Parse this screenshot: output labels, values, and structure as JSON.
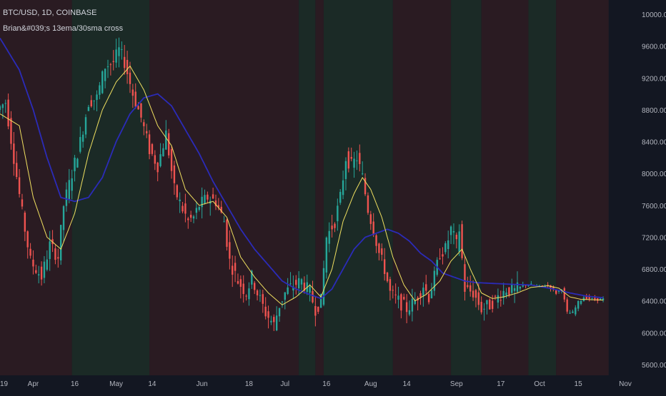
{
  "header": {
    "symbol_line": "BTC/USD, 1D, COINBASE",
    "indicator_line": "Brian&#039;s 13ema/30sma cross"
  },
  "colors": {
    "background": "#131722",
    "bull_candle": "#26a69a",
    "bear_candle": "#ef5350",
    "bull_zone": "#1b2a26",
    "bear_zone": "#2a1b22",
    "ema13": "#f0e060",
    "sma30": "#2b2bb8",
    "axis_text": "#b2b5be"
  },
  "chart_data": {
    "type": "candlestick",
    "series": [
      {
        "name": "BTC/USD"
      },
      {
        "name": "13ema"
      },
      {
        "name": "30sma"
      }
    ],
    "ylim": [
      5600,
      10000
    ],
    "y_ticks": [
      "10000.00",
      "9600.00",
      "9200.00",
      "8800.00",
      "8400.00",
      "8000.00",
      "7600.00",
      "7200.00",
      "6800.00",
      "6400.00",
      "6000.00",
      "5600.00"
    ],
    "x_ticks": [
      {
        "label": "19",
        "day": -12
      },
      {
        "label": "Apr",
        "day": 0
      },
      {
        "label": "16",
        "day": 15
      },
      {
        "label": "May",
        "day": 30
      },
      {
        "label": "14",
        "day": 43
      },
      {
        "label": "Jun",
        "day": 61
      },
      {
        "label": "18",
        "day": 78
      },
      {
        "label": "Jul",
        "day": 91
      },
      {
        "label": "16",
        "day": 106
      },
      {
        "label": "Aug",
        "day": 122
      },
      {
        "label": "14",
        "day": 135
      },
      {
        "label": "Sep",
        "day": 153
      },
      {
        "label": "17",
        "day": 169
      },
      {
        "label": "Oct",
        "day": 183
      },
      {
        "label": "15",
        "day": 197
      },
      {
        "label": "Nov",
        "day": 214
      }
    ],
    "trend_zones": [
      {
        "start": -12,
        "end": 14,
        "trend": "bear"
      },
      {
        "start": 14,
        "end": 42,
        "trend": "bull"
      },
      {
        "start": 42,
        "end": 96,
        "trend": "bear"
      },
      {
        "start": 96,
        "end": 102,
        "trend": "bull"
      },
      {
        "start": 102,
        "end": 105,
        "trend": "bear"
      },
      {
        "start": 105,
        "end": 130,
        "trend": "bull"
      },
      {
        "start": 130,
        "end": 151,
        "trend": "bear"
      },
      {
        "start": 151,
        "end": 162,
        "trend": "bull"
      },
      {
        "start": 162,
        "end": 179,
        "trend": "bear"
      },
      {
        "start": 179,
        "end": 189,
        "trend": "bull"
      },
      {
        "start": 189,
        "end": 208,
        "trend": "bear"
      }
    ],
    "price_anchors": [
      [
        -12,
        8800
      ],
      [
        -9,
        8900
      ],
      [
        -6,
        8200
      ],
      [
        -3,
        7500
      ],
      [
        0,
        6900
      ],
      [
        4,
        6700
      ],
      [
        7,
        7100
      ],
      [
        10,
        6950
      ],
      [
        12,
        7600
      ],
      [
        15,
        8000
      ],
      [
        18,
        8400
      ],
      [
        21,
        8900
      ],
      [
        24,
        8950
      ],
      [
        27,
        9350
      ],
      [
        30,
        9400
      ],
      [
        32,
        9550
      ],
      [
        34,
        9400
      ],
      [
        37,
        9000
      ],
      [
        40,
        8700
      ],
      [
        43,
        8300
      ],
      [
        46,
        8100
      ],
      [
        49,
        8500
      ],
      [
        52,
        7800
      ],
      [
        55,
        7550
      ],
      [
        57,
        7400
      ],
      [
        59,
        7450
      ],
      [
        61,
        7600
      ],
      [
        64,
        7700
      ],
      [
        67,
        7650
      ],
      [
        70,
        7400
      ],
      [
        72,
        6900
      ],
      [
        75,
        6650
      ],
      [
        78,
        6500
      ],
      [
        80,
        6700
      ],
      [
        82,
        6500
      ],
      [
        85,
        6250
      ],
      [
        88,
        6100
      ],
      [
        90,
        6350
      ],
      [
        92,
        6500
      ],
      [
        95,
        6600
      ],
      [
        98,
        6650
      ],
      [
        101,
        6500
      ],
      [
        103,
        6300
      ],
      [
        105,
        6400
      ],
      [
        107,
        7200
      ],
      [
        110,
        7400
      ],
      [
        112,
        7700
      ],
      [
        114,
        8200
      ],
      [
        116,
        8100
      ],
      [
        118,
        8200
      ],
      [
        120,
        7950
      ],
      [
        122,
        7550
      ],
      [
        124,
        7300
      ],
      [
        126,
        7000
      ],
      [
        128,
        6800
      ],
      [
        130,
        6500
      ],
      [
        133,
        6400
      ],
      [
        136,
        6300
      ],
      [
        139,
        6400
      ],
      [
        142,
        6600
      ],
      [
        144,
        6450
      ],
      [
        146,
        6700
      ],
      [
        148,
        7000
      ],
      [
        150,
        7050
      ],
      [
        152,
        7300
      ],
      [
        154,
        7100
      ],
      [
        155,
        7300
      ],
      [
        157,
        6550
      ],
      [
        160,
        6500
      ],
      [
        163,
        6300
      ],
      [
        166,
        6350
      ],
      [
        169,
        6450
      ],
      [
        172,
        6550
      ],
      [
        175,
        6520
      ],
      [
        178,
        6600
      ],
      [
        181,
        6600
      ],
      [
        184,
        6580
      ],
      [
        187,
        6600
      ],
      [
        190,
        6500
      ],
      [
        192,
        6560
      ],
      [
        194,
        6250
      ],
      [
        196,
        6250
      ],
      [
        198,
        6380
      ],
      [
        200,
        6450
      ],
      [
        203,
        6420
      ],
      [
        206,
        6420
      ]
    ],
    "ema13_anchors": [
      [
        -12,
        8750
      ],
      [
        -5,
        8600
      ],
      [
        0,
        7700
      ],
      [
        5,
        7200
      ],
      [
        10,
        7050
      ],
      [
        15,
        7500
      ],
      [
        20,
        8250
      ],
      [
        25,
        8800
      ],
      [
        30,
        9150
      ],
      [
        35,
        9350
      ],
      [
        40,
        9050
      ],
      [
        45,
        8600
      ],
      [
        50,
        8350
      ],
      [
        55,
        7800
      ],
      [
        60,
        7600
      ],
      [
        65,
        7650
      ],
      [
        70,
        7450
      ],
      [
        75,
        6950
      ],
      [
        80,
        6700
      ],
      [
        85,
        6500
      ],
      [
        90,
        6350
      ],
      [
        95,
        6450
      ],
      [
        100,
        6600
      ],
      [
        104,
        6450
      ],
      [
        108,
        6800
      ],
      [
        112,
        7400
      ],
      [
        116,
        7750
      ],
      [
        119,
        7950
      ],
      [
        122,
        7800
      ],
      [
        126,
        7450
      ],
      [
        130,
        6950
      ],
      [
        134,
        6600
      ],
      [
        138,
        6400
      ],
      [
        142,
        6480
      ],
      [
        147,
        6650
      ],
      [
        151,
        6900
      ],
      [
        155,
        7050
      ],
      [
        158,
        6800
      ],
      [
        162,
        6500
      ],
      [
        166,
        6430
      ],
      [
        170,
        6450
      ],
      [
        175,
        6500
      ],
      [
        180,
        6570
      ],
      [
        186,
        6590
      ],
      [
        190,
        6560
      ],
      [
        194,
        6450
      ],
      [
        198,
        6420
      ],
      [
        206,
        6410
      ]
    ],
    "sma30_anchors": [
      [
        -12,
        9700
      ],
      [
        -5,
        9300
      ],
      [
        0,
        8800
      ],
      [
        5,
        8200
      ],
      [
        10,
        7700
      ],
      [
        15,
        7650
      ],
      [
        20,
        7700
      ],
      [
        25,
        7950
      ],
      [
        30,
        8400
      ],
      [
        35,
        8750
      ],
      [
        40,
        8950
      ],
      [
        45,
        9000
      ],
      [
        50,
        8850
      ],
      [
        55,
        8550
      ],
      [
        60,
        8250
      ],
      [
        65,
        7900
      ],
      [
        70,
        7600
      ],
      [
        75,
        7300
      ],
      [
        80,
        7050
      ],
      [
        85,
        6850
      ],
      [
        90,
        6650
      ],
      [
        95,
        6550
      ],
      [
        100,
        6480
      ],
      [
        104,
        6430
      ],
      [
        108,
        6550
      ],
      [
        112,
        6800
      ],
      [
        116,
        7050
      ],
      [
        120,
        7200
      ],
      [
        124,
        7250
      ],
      [
        128,
        7300
      ],
      [
        132,
        7250
      ],
      [
        136,
        7150
      ],
      [
        140,
        7000
      ],
      [
        144,
        6900
      ],
      [
        148,
        6750
      ],
      [
        152,
        6700
      ],
      [
        156,
        6650
      ],
      [
        160,
        6630
      ],
      [
        166,
        6620
      ],
      [
        172,
        6610
      ],
      [
        180,
        6600
      ],
      [
        188,
        6550
      ],
      [
        194,
        6500
      ],
      [
        200,
        6460
      ],
      [
        206,
        6440
      ]
    ]
  }
}
